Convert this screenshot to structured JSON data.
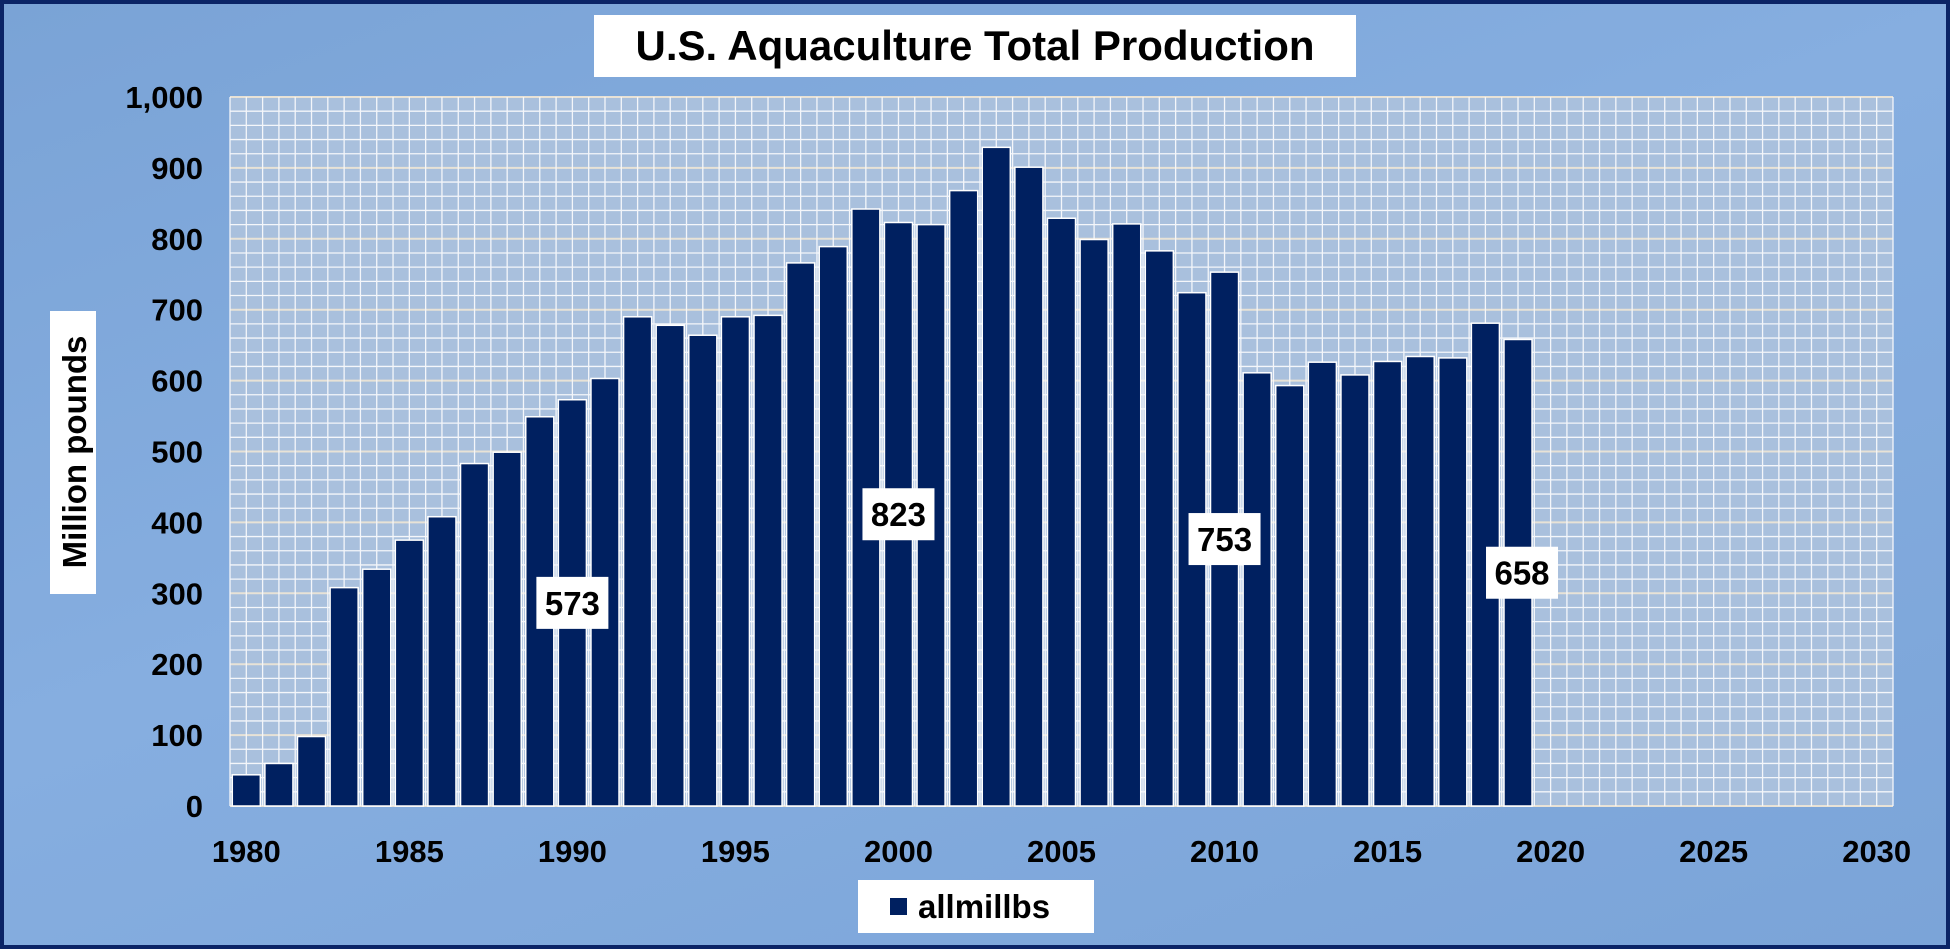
{
  "chart_data": {
    "type": "bar",
    "title": "U.S. Aquaculture Total Production",
    "xlabel": "",
    "ylabel": "Million pounds",
    "ylim": [
      0,
      1000
    ],
    "yticks": [
      "0",
      "100",
      "200",
      "300",
      "400",
      "500",
      "600",
      "700",
      "800",
      "900",
      "1,000"
    ],
    "xlim": [
      1980,
      2030
    ],
    "xticks": [
      "1980",
      "1985",
      "1990",
      "1995",
      "2000",
      "2005",
      "2010",
      "2015",
      "2020",
      "2025",
      "2030"
    ],
    "grid": true,
    "legend": {
      "position": "bottom",
      "entries": [
        "allmillbs"
      ]
    },
    "bar_color": "#002060",
    "background_color": "#a9c0dd",
    "series": [
      {
        "name": "allmillbs",
        "x": [
          1980,
          1981,
          1982,
          1983,
          1984,
          1985,
          1986,
          1987,
          1988,
          1989,
          1990,
          1991,
          1992,
          1993,
          1994,
          1995,
          1996,
          1997,
          1998,
          1999,
          2000,
          2001,
          2002,
          2003,
          2004,
          2005,
          2006,
          2007,
          2008,
          2009,
          2010,
          2011,
          2012,
          2013,
          2014,
          2015,
          2016,
          2017,
          2018,
          2019
        ],
        "values": [
          44,
          60,
          98,
          308,
          334,
          375,
          408,
          483,
          499,
          549,
          573,
          603,
          690,
          678,
          664,
          690,
          692,
          766,
          789,
          842,
          823,
          820,
          868,
          929,
          901,
          829,
          799,
          821,
          783,
          724,
          753,
          611,
          593,
          626,
          608,
          627,
          634,
          632,
          681,
          658
        ]
      }
    ],
    "data_labels": [
      {
        "x": 1990,
        "text": "573"
      },
      {
        "x": 2000,
        "text": "823"
      },
      {
        "x": 2010,
        "text": "753"
      },
      {
        "x": 2019,
        "text": "658"
      }
    ]
  }
}
